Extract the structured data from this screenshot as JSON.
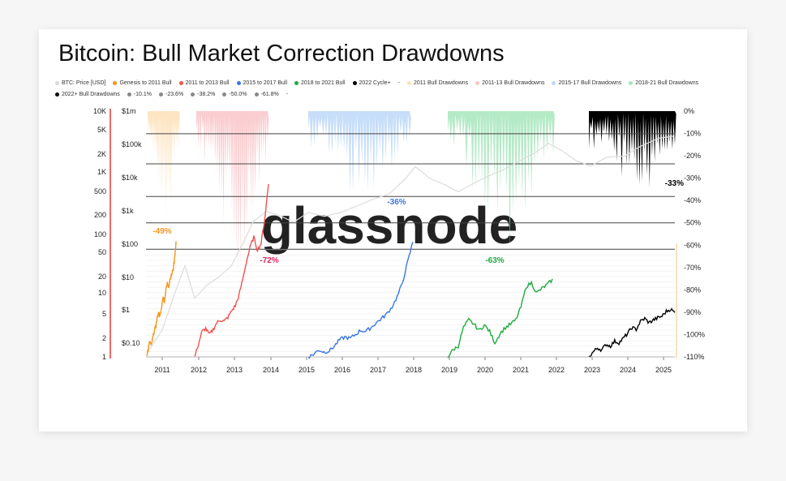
{
  "title": "Bitcoin: Bull Market Correction Drawdowns",
  "legend": [
    {
      "label": "BTC: Price [USD]",
      "color": "#d9d9d9",
      "kind": "dot"
    },
    {
      "label": "Genesis to 2011 Bull",
      "color": "#f7931a",
      "kind": "dot"
    },
    {
      "label": "2011 to 2013 Bull",
      "color": "#ef5350",
      "kind": "dot"
    },
    {
      "label": "2015 to 2017 Bull",
      "color": "#3a75e8",
      "kind": "dot"
    },
    {
      "label": "2018 to 2021 Bull",
      "color": "#1faa3e",
      "kind": "dot"
    },
    {
      "label": "2022 Cycle+",
      "color": "#000000",
      "kind": "dot"
    },
    {
      "label": "-",
      "color": "#555555",
      "kind": "text"
    },
    {
      "label": "2011 Bull Drawdowns",
      "color": "#fde1b8",
      "kind": "dot"
    },
    {
      "label": "2011-13 Bull Drawdowns",
      "color": "#f9c6c9",
      "kind": "dot"
    },
    {
      "label": "2015-17 Bull Drawdowns",
      "color": "#bcd8f8",
      "kind": "dot"
    },
    {
      "label": "2018-21 Bull Drawdowns",
      "color": "#a8e6bd",
      "kind": "dot"
    },
    {
      "label": "2022+ Bull Drawdowns",
      "color": "#000000",
      "kind": "dot"
    },
    {
      "label": "-10.1%",
      "color": "#888888",
      "kind": "dot"
    },
    {
      "label": "-23.6%",
      "color": "#888888",
      "kind": "dot"
    },
    {
      "label": "-38.2%",
      "color": "#888888",
      "kind": "dot"
    },
    {
      "label": "-50.0%",
      "color": "#888888",
      "kind": "dot"
    },
    {
      "label": "-61.8%",
      "color": "#888888",
      "kind": "dot"
    },
    {
      "label": "-",
      "color": "#555555",
      "kind": "text"
    }
  ],
  "watermark": "glassnode",
  "chart_data": {
    "type": "line",
    "title": "Bitcoin: Bull Market Correction Drawdowns",
    "x_ticks": [
      "2011",
      "2012",
      "2013",
      "2014",
      "2015",
      "2016",
      "2017",
      "2018",
      "2019",
      "2020",
      "2021",
      "2022",
      "2023",
      "2024",
      "2025"
    ],
    "left_axis_ticks": [
      "10K",
      "5K",
      "2K",
      "1K",
      "500",
      "200",
      "100",
      "50",
      "20",
      "10",
      "5",
      "2",
      "1"
    ],
    "price_axis_ticks": [
      "$1m",
      "$100k",
      "$10k",
      "$1k",
      "$100",
      "$10",
      "$1",
      "$0.10"
    ],
    "right_axis_ticks": [
      "0%",
      "-10%",
      "-20%",
      "-30%",
      "-40%",
      "-50%",
      "-60%",
      "-70%",
      "-80%",
      "-90%",
      "-100%",
      "-110%"
    ],
    "fib_levels": [
      -10.1,
      -23.6,
      -38.2,
      -50.0,
      -61.8
    ],
    "series": [
      {
        "name": "Genesis to 2011 Bull",
        "color": "#f7931a",
        "ylim": [
          1,
          10000
        ],
        "x": [
          0,
          0.05,
          0.1,
          0.15,
          0.2,
          0.25,
          0.3,
          0.35,
          0.4,
          0.45,
          0.5,
          0.55,
          0.6,
          0.65,
          0.7,
          0.75,
          0.8,
          0.85,
          0.9,
          0.95,
          1
        ],
        "values": [
          1.1,
          1.3,
          1.8,
          1.5,
          2.0,
          2.6,
          3.0,
          4.2,
          5.2,
          4.6,
          6.0,
          9.5,
          8.0,
          12,
          16,
          14,
          19,
          22,
          26,
          40,
          75
        ]
      },
      {
        "name": "2011 to 2013 Bull",
        "color": "#ef5350",
        "ylim": [
          1,
          10000
        ],
        "x": [
          0,
          0.05,
          0.1,
          0.15,
          0.2,
          0.25,
          0.3,
          0.35,
          0.4,
          0.45,
          0.5,
          0.55,
          0.6,
          0.65,
          0.7,
          0.75,
          0.8,
          0.85,
          0.9,
          0.95,
          1
        ],
        "values": [
          1.0,
          1.6,
          2.6,
          2.9,
          2.3,
          2.8,
          3.6,
          4.0,
          3.8,
          4.4,
          5.6,
          6.8,
          10,
          18,
          35,
          60,
          90,
          55,
          70,
          180,
          650
        ]
      },
      {
        "name": "2015 to 2017 Bull",
        "color": "#3a75e8",
        "ylim": [
          1,
          10000
        ],
        "x": [
          0,
          0.05,
          0.1,
          0.15,
          0.2,
          0.25,
          0.3,
          0.35,
          0.4,
          0.45,
          0.5,
          0.55,
          0.6,
          0.65,
          0.7,
          0.75,
          0.8,
          0.85,
          0.9,
          0.95,
          1
        ],
        "values": [
          1.0,
          1.1,
          1.3,
          1.2,
          1.25,
          1.5,
          1.9,
          2.1,
          2.0,
          2.3,
          2.7,
          2.6,
          3.0,
          3.6,
          4.2,
          5.0,
          6.5,
          9.5,
          16,
          35,
          75
        ]
      },
      {
        "name": "2018 to 2021 Bull",
        "color": "#1faa3e",
        "ylim": [
          1,
          10000
        ],
        "x": [
          0,
          0.05,
          0.1,
          0.15,
          0.2,
          0.25,
          0.3,
          0.35,
          0.4,
          0.45,
          0.5,
          0.55,
          0.6,
          0.65,
          0.7,
          0.75,
          0.8,
          0.85,
          0.9,
          0.95,
          1
        ],
        "values": [
          1.0,
          1.3,
          1.5,
          3.0,
          4.0,
          3.4,
          2.7,
          3.3,
          2.6,
          1.7,
          2.4,
          3.0,
          3.4,
          4.0,
          6.5,
          14,
          16,
          11,
          13,
          15,
          18
        ]
      },
      {
        "name": "2022 Cycle+",
        "color": "#000000",
        "ylim": [
          1,
          10000
        ],
        "x": [
          0,
          0.05,
          0.1,
          0.15,
          0.2,
          0.25,
          0.3,
          0.35,
          0.4,
          0.45,
          0.5,
          0.55,
          0.6,
          0.65,
          0.7,
          0.75,
          0.8,
          0.85,
          0.9,
          0.95,
          1
        ],
        "values": [
          1.0,
          1.2,
          1.4,
          1.3,
          1.6,
          1.5,
          1.8,
          1.7,
          2.0,
          2.4,
          3.0,
          2.8,
          3.8,
          4.2,
          3.6,
          4.0,
          4.3,
          4.6,
          5.5,
          6.0,
          5.2
        ]
      }
    ],
    "drawdown_peaks": [
      {
        "name": "2011 Bull Drawdowns",
        "color": "#fde1b8",
        "min_drawdown": -49
      },
      {
        "name": "2011-13 Bull Drawdowns",
        "color": "#f9c6c9",
        "min_drawdown": -72
      },
      {
        "name": "2015-17 Bull Drawdowns",
        "color": "#bcd8f8",
        "min_drawdown": -36
      },
      {
        "name": "2018-21 Bull Drawdowns",
        "color": "#a8e6bd",
        "min_drawdown": -63
      },
      {
        "name": "2022+ Bull Drawdowns",
        "color": "#000000",
        "min_drawdown": -33
      }
    ],
    "annotations": [
      {
        "text": "-49%",
        "color": "#f7931a"
      },
      {
        "text": "-72%",
        "color": "#e0245e"
      },
      {
        "text": "-36%",
        "color": "#3a75e8"
      },
      {
        "text": "-63%",
        "color": "#1faa3e"
      },
      {
        "text": "-33%",
        "color": "#000000"
      }
    ]
  }
}
